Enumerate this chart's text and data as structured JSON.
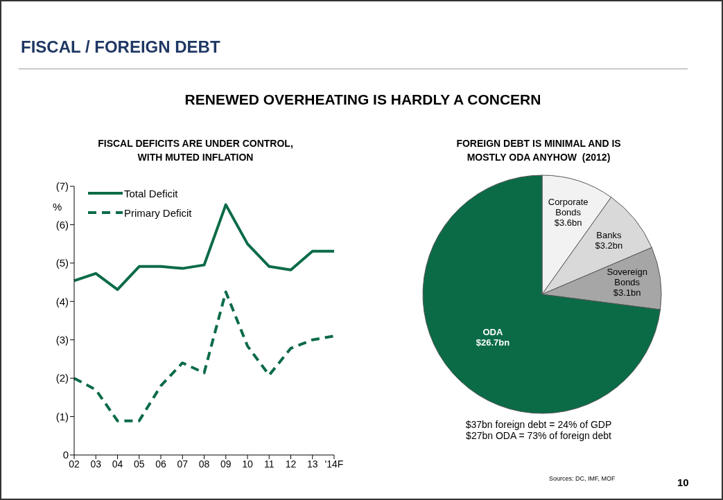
{
  "chart_data": [
    {
      "type": "other",
      "title": "FISCAL / FOREIGN DEBT",
      "subtitle": "RENEWED OVERHEATING IS HARDLY A CONCERN",
      "annotations": [
        "Sources: DC, IMF, MOF",
        "10"
      ]
    },
    {
      "type": "line",
      "title": "FISCAL DEFICITS ARE UNDER CONTROL, WITH MUTED INFLATION",
      "ylabel": "%",
      "categories": [
        "02",
        "03",
        "04",
        "05",
        "06",
        "07",
        "08",
        "09",
        "10",
        "11",
        "12",
        "13",
        "'14F"
      ],
      "series": [
        {
          "name": "Total Deficit",
          "color": "#0b6b47",
          "line_style": "solid",
          "values": [
            4.54,
            4.73,
            4.31,
            4.91,
            4.91,
            4.86,
            4.95,
            6.52,
            5.5,
            4.91,
            4.82,
            5.31,
            5.31
          ]
        },
        {
          "name": "Primary Deficit",
          "color": "#0b6b47",
          "line_style": "dashed",
          "values": [
            2.0,
            1.7,
            0.89,
            0.89,
            1.8,
            2.4,
            2.14,
            4.25,
            2.84,
            2.08,
            2.78,
            3.0,
            3.1
          ]
        }
      ],
      "ylim": [
        0,
        7
      ],
      "yticks": [
        0,
        {
          "value": 1,
          "label": "(1)"
        },
        {
          "value": 2,
          "label": "(2)"
        },
        {
          "value": 3,
          "label": "(3)"
        },
        {
          "value": 4,
          "label": "(4)"
        },
        {
          "value": 5,
          "label": "(5)"
        },
        {
          "value": 6,
          "label": "(6)"
        },
        {
          "value": 7,
          "label": "(7)"
        }
      ],
      "legend": "top left",
      "marker": "none"
    },
    {
      "type": "pie",
      "title": "FOREIGN DEBT IS MINIMAL AND IS MOSTLY ODA ANYHOW  (2012)",
      "categories": [
        "Corporate Bonds",
        "Banks",
        "Sovereign Bonds",
        "ODA"
      ],
      "values": [
        3.6,
        3.2,
        3.1,
        26.7
      ],
      "value_labels": [
        "$3.6bn",
        "$3.2bn",
        "$3.1bn",
        "$26.7bn"
      ],
      "colors": [
        "#f2f2f2",
        "#d9d9d9",
        "#a6a6a6",
        "#0b6b47"
      ],
      "annotations": [
        "$37bn foreign debt = 24% of GDP",
        "$27bn ODA = 73% of foreign debt"
      ]
    }
  ]
}
